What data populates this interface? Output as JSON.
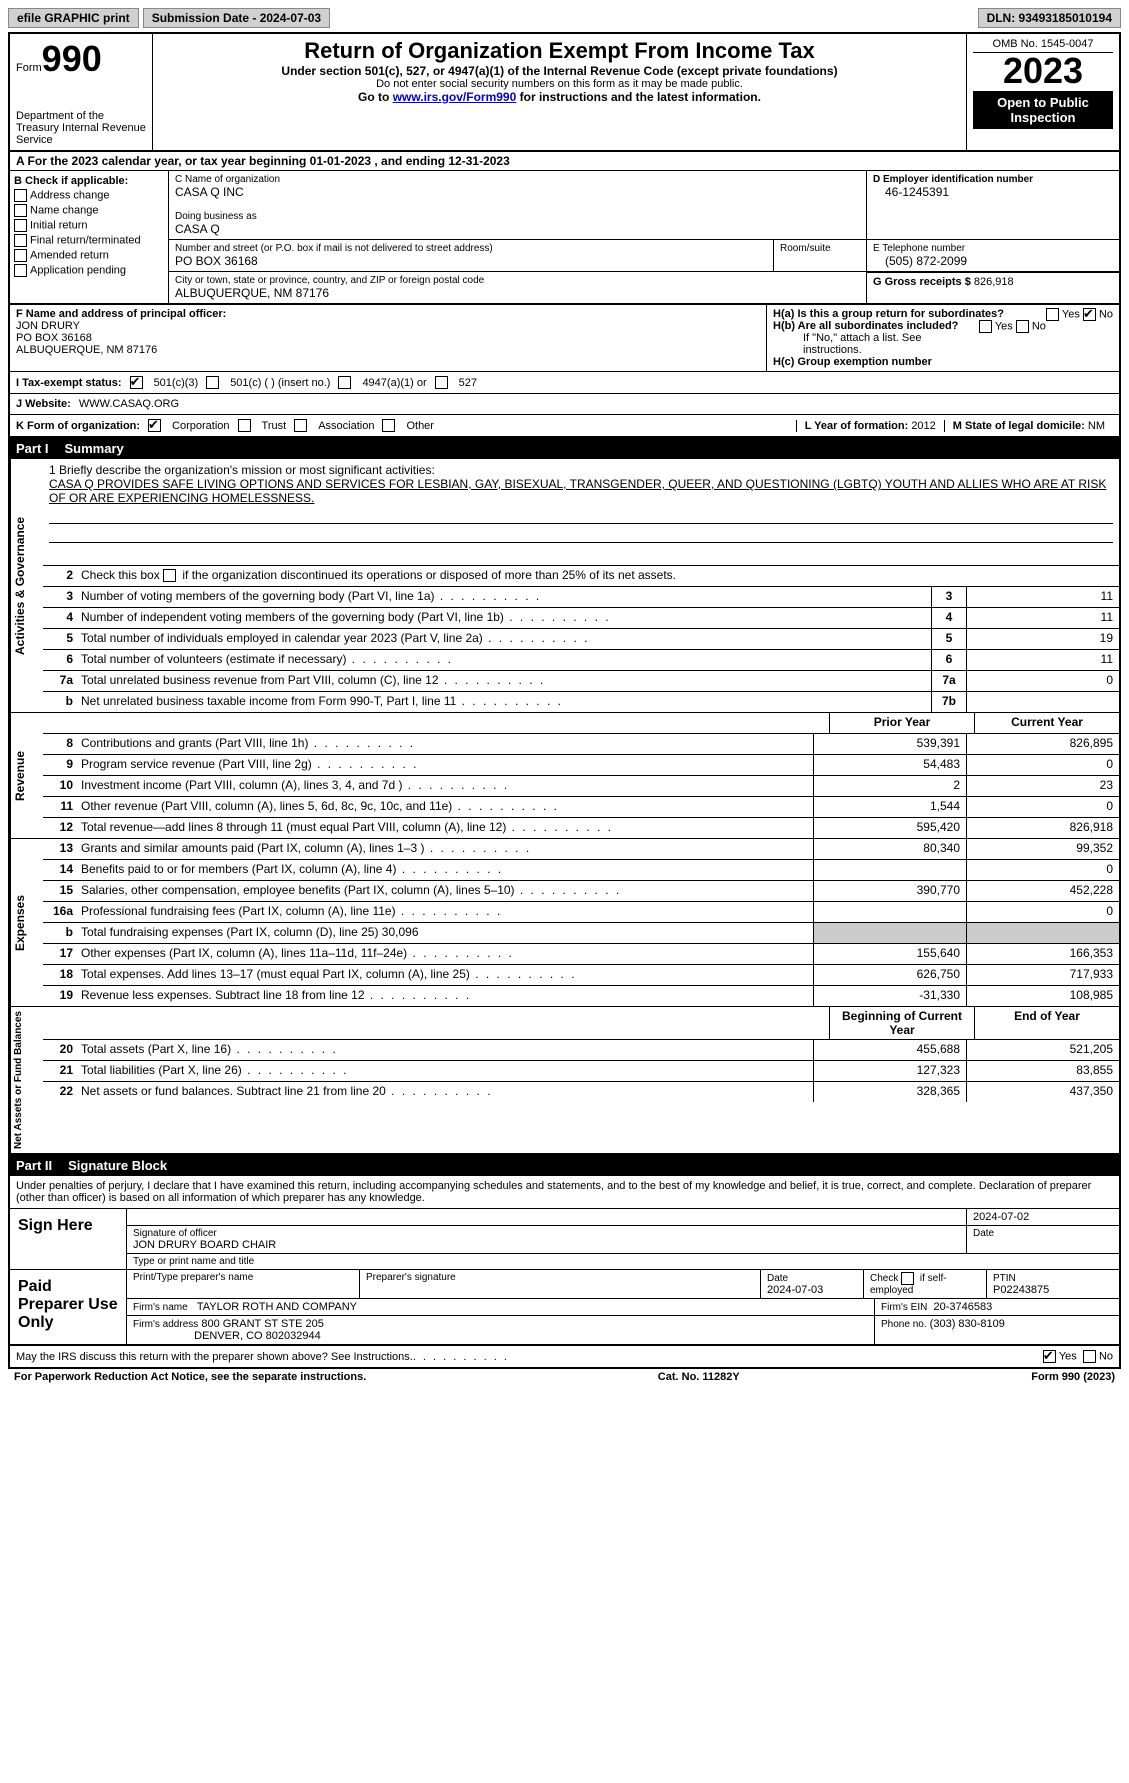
{
  "topbar": {
    "efile": "efile GRAPHIC print",
    "submission": "Submission Date - 2024-07-03",
    "dln": "DLN: 93493185010194"
  },
  "header": {
    "form_label": "Form",
    "form_num": "990",
    "dept": "Department of the Treasury Internal Revenue Service",
    "title": "Return of Organization Exempt From Income Tax",
    "subtitle": "Under section 501(c), 527, or 4947(a)(1) of the Internal Revenue Code (except private foundations)",
    "ssn_note": "Do not enter social security numbers on this form as it may be made public.",
    "goto_prefix": "Go to ",
    "goto_link": "www.irs.gov/Form990",
    "goto_suffix": " for instructions and the latest information.",
    "omb": "OMB No. 1545-0047",
    "year": "2023",
    "open": "Open to Public Inspection"
  },
  "sectionA": "A    For the 2023 calendar year, or tax year beginning 01-01-2023    , and ending 12-31-2023",
  "boxB": {
    "label": "B Check if applicable:",
    "items": [
      "Address change",
      "Name change",
      "Initial return",
      "Final return/terminated",
      "Amended return",
      "Application pending"
    ]
  },
  "boxC": {
    "name_label": "C Name of organization",
    "name": "CASA Q INC",
    "dba_label": "Doing business as",
    "dba": "CASA Q",
    "street_label": "Number and street (or P.O. box if mail is not delivered to street address)",
    "street": "PO BOX 36168",
    "room_label": "Room/suite",
    "city_label": "City or town, state or province, country, and ZIP or foreign postal code",
    "city": "ALBUQUERQUE, NM  87176"
  },
  "boxD": {
    "label": "D Employer identification number",
    "value": "46-1245391"
  },
  "boxE": {
    "label": "E Telephone number",
    "value": "(505) 872-2099"
  },
  "boxG": {
    "label": "G Gross receipts $",
    "value": "826,918"
  },
  "boxF": {
    "label": "F  Name and address of principal officer:",
    "name": "JON DRURY",
    "street": "PO BOX 36168",
    "city": "ALBUQUERQUE, NM  87176"
  },
  "boxH": {
    "ha_label": "H(a)  Is this a group return for subordinates?",
    "hb_label": "H(b)  Are all subordinates included?",
    "hb_note": "If \"No,\" attach a list. See instructions.",
    "hc_label": "H(c)  Group exemption number",
    "yes": "Yes",
    "no": "No"
  },
  "boxI": {
    "label": "I    Tax-exempt status:",
    "c3": "501(c)(3)",
    "c_other": "501(c) (  ) (insert no.)",
    "a1": "4947(a)(1) or",
    "s527": "527"
  },
  "boxJ": {
    "label": "J    Website:",
    "value": "WWW.CASAQ.ORG"
  },
  "boxK": {
    "label": "K Form of organization:",
    "corp": "Corporation",
    "trust": "Trust",
    "assoc": "Association",
    "other": "Other"
  },
  "boxL": {
    "label": "L Year of formation:",
    "value": "2012"
  },
  "boxM": {
    "label": "M State of legal domicile:",
    "value": "NM"
  },
  "part1": {
    "label": "Part I",
    "title": "Summary"
  },
  "mission": {
    "line1_label": "1   Briefly describe the organization's mission or most significant activities:",
    "text": "CASA Q PROVIDES SAFE LIVING OPTIONS AND SERVICES FOR LESBIAN, GAY, BISEXUAL, TRANSGENDER, QUEER, AND QUESTIONING (LGBTQ) YOUTH AND ALLIES WHO ARE AT RISK OF OR ARE EXPERIENCING HOMELESSNESS."
  },
  "line2": "Check this box      if the organization discontinued its operations or disposed of more than 25% of its net assets.",
  "governance": {
    "title": "Activities & Governance",
    "rows": [
      {
        "n": "3",
        "desc": "Number of voting members of the governing body (Part VI, line 1a)",
        "box": "3",
        "val": "11"
      },
      {
        "n": "4",
        "desc": "Number of independent voting members of the governing body (Part VI, line 1b)",
        "box": "4",
        "val": "11"
      },
      {
        "n": "5",
        "desc": "Total number of individuals employed in calendar year 2023 (Part V, line 2a)",
        "box": "5",
        "val": "19"
      },
      {
        "n": "6",
        "desc": "Total number of volunteers (estimate if necessary)",
        "box": "6",
        "val": "11"
      },
      {
        "n": "7a",
        "desc": "Total unrelated business revenue from Part VIII, column (C), line 12",
        "box": "7a",
        "val": "0"
      },
      {
        "n": "b",
        "desc": "Net unrelated business taxable income from Form 990-T, Part I, line 11",
        "box": "7b",
        "val": ""
      }
    ]
  },
  "col_headers": {
    "prior": "Prior Year",
    "current": "Current Year",
    "begin": "Beginning of Current Year",
    "end": "End of Year"
  },
  "revenue": {
    "title": "Revenue",
    "rows": [
      {
        "n": "8",
        "desc": "Contributions and grants (Part VIII, line 1h)",
        "p": "539,391",
        "c": "826,895"
      },
      {
        "n": "9",
        "desc": "Program service revenue (Part VIII, line 2g)",
        "p": "54,483",
        "c": "0"
      },
      {
        "n": "10",
        "desc": "Investment income (Part VIII, column (A), lines 3, 4, and 7d )",
        "p": "2",
        "c": "23"
      },
      {
        "n": "11",
        "desc": "Other revenue (Part VIII, column (A), lines 5, 6d, 8c, 9c, 10c, and 11e)",
        "p": "1,544",
        "c": "0"
      },
      {
        "n": "12",
        "desc": "Total revenue—add lines 8 through 11 (must equal Part VIII, column (A), line 12)",
        "p": "595,420",
        "c": "826,918"
      }
    ]
  },
  "expenses": {
    "title": "Expenses",
    "rows": [
      {
        "n": "13",
        "desc": "Grants and similar amounts paid (Part IX, column (A), lines 1–3 )",
        "p": "80,340",
        "c": "99,352"
      },
      {
        "n": "14",
        "desc": "Benefits paid to or for members (Part IX, column (A), line 4)",
        "p": "",
        "c": "0"
      },
      {
        "n": "15",
        "desc": "Salaries, other compensation, employee benefits (Part IX, column (A), lines 5–10)",
        "p": "390,770",
        "c": "452,228"
      },
      {
        "n": "16a",
        "desc": "Professional fundraising fees (Part IX, column (A), line 11e)",
        "p": "",
        "c": "0"
      },
      {
        "n": "b",
        "desc": "Total fundraising expenses (Part IX, column (D), line 25) 30,096",
        "p": "shaded",
        "c": "shaded"
      },
      {
        "n": "17",
        "desc": "Other expenses (Part IX, column (A), lines 11a–11d, 11f–24e)",
        "p": "155,640",
        "c": "166,353"
      },
      {
        "n": "18",
        "desc": "Total expenses. Add lines 13–17 (must equal Part IX, column (A), line 25)",
        "p": "626,750",
        "c": "717,933"
      },
      {
        "n": "19",
        "desc": "Revenue less expenses. Subtract line 18 from line 12",
        "p": "-31,330",
        "c": "108,985"
      }
    ]
  },
  "netassets": {
    "title": "Net Assets or Fund Balances",
    "rows": [
      {
        "n": "20",
        "desc": "Total assets (Part X, line 16)",
        "p": "455,688",
        "c": "521,205"
      },
      {
        "n": "21",
        "desc": "Total liabilities (Part X, line 26)",
        "p": "127,323",
        "c": "83,855"
      },
      {
        "n": "22",
        "desc": "Net assets or fund balances. Subtract line 21 from line 20",
        "p": "328,365",
        "c": "437,350"
      }
    ]
  },
  "part2": {
    "label": "Part II",
    "title": "Signature Block"
  },
  "sig": {
    "declaration": "Under penalties of perjury, I declare that I have examined this return, including accompanying schedules and statements, and to the best of my knowledge and belief, it is true, correct, and complete. Declaration of preparer (other than officer) is based on all information of which preparer has any knowledge.",
    "sign_here": "Sign Here",
    "sig_officer": "Signature of officer",
    "officer_name": "JON DRURY BOARD CHAIR",
    "type_title": "Type or print name and title",
    "date_label": "Date",
    "date1": "2024-07-02",
    "paid": "Paid Preparer Use Only",
    "prep_name_label": "Print/Type preparer's name",
    "prep_sig_label": "Preparer's signature",
    "date2": "2024-07-03",
    "check_se": "Check       if self-employed",
    "ptin_label": "PTIN",
    "ptin": "P02243875",
    "firm_name_label": "Firm's name",
    "firm_name": "TAYLOR ROTH AND COMPANY",
    "firm_ein_label": "Firm's EIN",
    "firm_ein": "20-3746583",
    "firm_addr_label": "Firm's address",
    "firm_addr1": "800 GRANT ST STE 205",
    "firm_addr2": "DENVER, CO  802032944",
    "phone_label": "Phone no.",
    "phone": "(303) 830-8109",
    "discuss": "May the IRS discuss this return with the preparer shown above? See Instructions.",
    "yes": "Yes",
    "no": "No"
  },
  "footer": {
    "pra": "For Paperwork Reduction Act Notice, see the separate instructions.",
    "cat": "Cat. No. 11282Y",
    "form": "Form 990 (2023)"
  }
}
